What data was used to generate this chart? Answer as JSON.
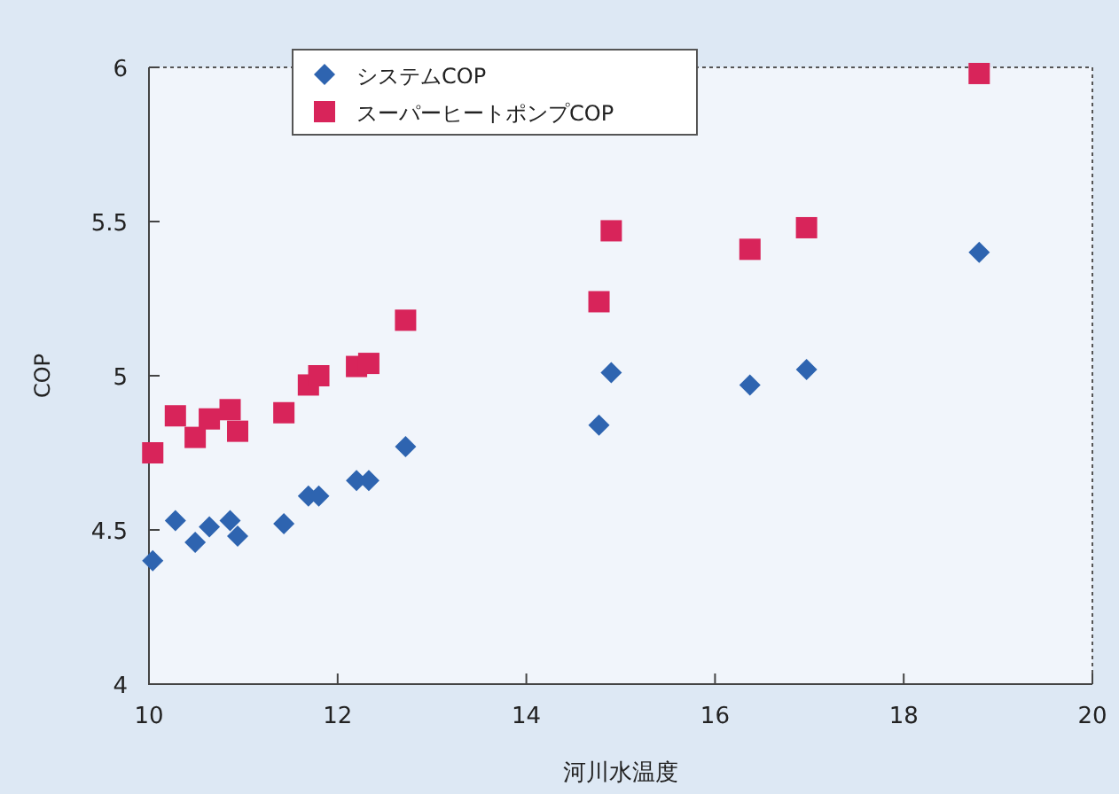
{
  "chart_data": {
    "type": "scatter",
    "xlabel": "河川水温度",
    "ylabel": "COP",
    "xlim": [
      10,
      20
    ],
    "xticks": [
      10,
      12,
      14,
      16,
      18,
      20
    ],
    "ylim": [
      4,
      6
    ],
    "yticks": [
      4,
      4.5,
      5,
      5.5,
      6
    ],
    "grid": false,
    "legend": "top left",
    "series": [
      {
        "name": "システムCOP",
        "color": "#2e64b0",
        "marker": "diamond",
        "x": [
          10.04,
          10.28,
          10.49,
          10.64,
          10.86,
          10.94,
          11.43,
          11.69,
          11.8,
          12.2,
          12.33,
          12.72,
          14.77,
          14.9,
          16.37,
          16.97,
          18.8
        ],
        "values": [
          4.4,
          4.53,
          4.46,
          4.51,
          4.53,
          4.48,
          4.52,
          4.61,
          4.61,
          4.66,
          4.66,
          4.77,
          4.84,
          5.01,
          4.97,
          5.02,
          5.4
        ]
      },
      {
        "name": "スーパーヒートポンプCOP",
        "color": "#d8245a",
        "marker": "square",
        "x": [
          10.04,
          10.28,
          10.49,
          10.64,
          10.86,
          10.94,
          11.43,
          11.69,
          11.8,
          12.2,
          12.33,
          12.72,
          14.77,
          14.9,
          16.37,
          16.97,
          18.8
        ],
        "values": [
          4.75,
          4.87,
          4.8,
          4.86,
          4.89,
          4.82,
          4.88,
          4.97,
          5.0,
          5.03,
          5.04,
          5.18,
          5.24,
          5.47,
          5.41,
          5.48,
          5.98
        ]
      }
    ]
  }
}
